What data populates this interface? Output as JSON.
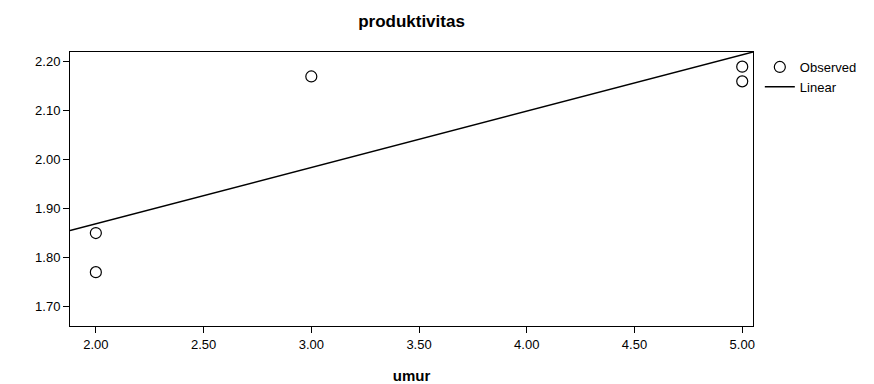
{
  "chart_data": {
    "type": "scatter",
    "title": "produktivitas",
    "x_label": "umur",
    "series": [
      {
        "name": "Observed",
        "type": "scatter",
        "marker": "circle-open",
        "color": "#000000",
        "x": [
          2.0,
          2.0,
          3.0,
          5.0,
          5.0
        ],
        "values": [
          1.85,
          1.77,
          2.17,
          2.19,
          2.16
        ]
      },
      {
        "name": "Linear",
        "type": "line",
        "line_style": "solid",
        "color": "#000000",
        "x": [
          1.88,
          5.05
        ],
        "values": [
          1.855,
          2.22
        ]
      }
    ],
    "xlim": [
      1.88,
      5.05
    ],
    "xticks": [
      {
        "value": 2,
        "label": "2.00"
      },
      {
        "value": 2.5,
        "label": "2.50"
      },
      {
        "value": 3,
        "label": "3.00"
      },
      {
        "value": 3.5,
        "label": "3.50"
      },
      {
        "value": 4,
        "label": "4.00"
      },
      {
        "value": 4.5,
        "label": "4.50"
      },
      {
        "value": 5,
        "label": "5.00"
      }
    ],
    "ylim": [
      1.66,
      2.22
    ],
    "yticks": [
      {
        "value": 1.7,
        "label": "1.70"
      },
      {
        "value": 1.8,
        "label": "1.80"
      },
      {
        "value": 1.9,
        "label": "1.90"
      },
      {
        "value": 2.0,
        "label": "2.00"
      },
      {
        "value": 2.1,
        "label": "2.10"
      },
      {
        "value": 2.2,
        "label": "2.20"
      }
    ],
    "grid": false,
    "legend": "right"
  }
}
